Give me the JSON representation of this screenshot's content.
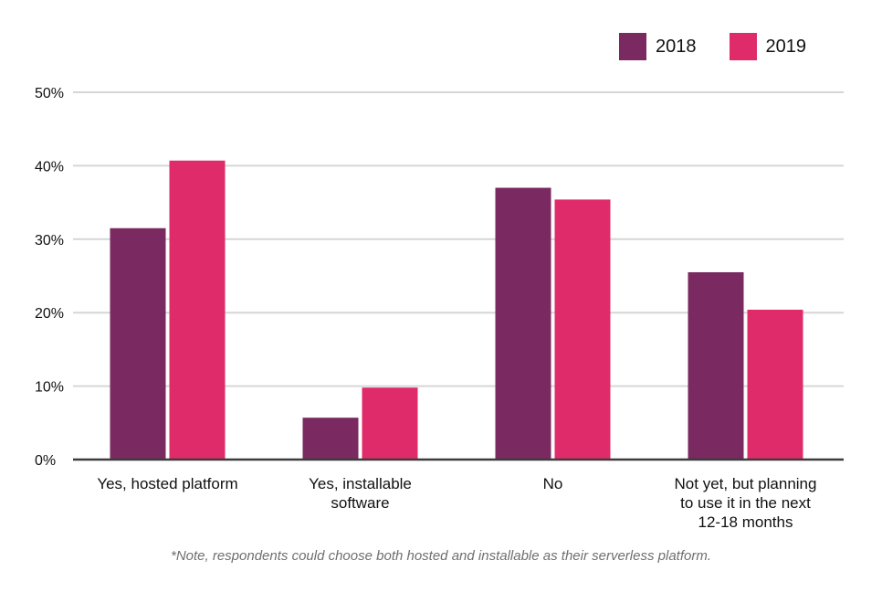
{
  "colors": {
    "series_2018": "#7a2a60",
    "series_2019": "#e02b6b",
    "grid": "#d6d6d6",
    "axis": "#3c3c3c"
  },
  "legend": {
    "items": [
      {
        "label": "2018"
      },
      {
        "label": "2019"
      }
    ]
  },
  "footnote": "*Note, respondents could choose both hosted and installable as their serverless platform.",
  "chart_data": {
    "type": "bar",
    "categories": [
      [
        "Yes, hosted platform"
      ],
      [
        "Yes, installable",
        "software"
      ],
      [
        "No"
      ],
      [
        "Not yet, but planning",
        "to use it in the next",
        "12-18 months"
      ]
    ],
    "series": [
      {
        "name": "2018",
        "values": [
          31.5,
          5.7,
          37.0,
          25.5
        ]
      },
      {
        "name": "2019",
        "values": [
          40.7,
          9.8,
          35.4,
          20.4
        ]
      }
    ],
    "y_ticks": [
      "0%",
      "10%",
      "20%",
      "30%",
      "40%",
      "50%"
    ],
    "ylim": [
      0,
      50
    ],
    "grid": true,
    "legend_position": "top-right"
  }
}
